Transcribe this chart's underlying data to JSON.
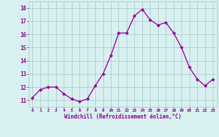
{
  "x": [
    0,
    1,
    2,
    3,
    4,
    5,
    6,
    7,
    8,
    9,
    10,
    11,
    12,
    13,
    14,
    15,
    16,
    17,
    18,
    19,
    20,
    21,
    22,
    23
  ],
  "y": [
    11.2,
    11.8,
    12.0,
    12.0,
    11.5,
    11.1,
    10.9,
    11.1,
    12.1,
    13.0,
    14.4,
    16.1,
    16.1,
    17.4,
    17.9,
    17.1,
    16.7,
    16.9,
    16.1,
    15.0,
    13.5,
    12.6,
    12.1,
    12.6
  ],
  "line_color": "#990099",
  "marker": "D",
  "marker_size": 2.2,
  "line_width": 1.0,
  "background_color": "#d8f0f0",
  "grid_color": "#aacccc",
  "xlabel": "Windchill (Refroidissement éolien,°C)",
  "xlabel_color": "#880088",
  "tick_color": "#880088",
  "ylim": [
    10.5,
    18.5
  ],
  "xlim": [
    -0.5,
    23.5
  ],
  "yticks": [
    11,
    12,
    13,
    14,
    15,
    16,
    17,
    18
  ],
  "xticks": [
    0,
    1,
    2,
    3,
    4,
    5,
    6,
    7,
    8,
    9,
    10,
    11,
    12,
    13,
    14,
    15,
    16,
    17,
    18,
    19,
    20,
    21,
    22,
    23
  ]
}
